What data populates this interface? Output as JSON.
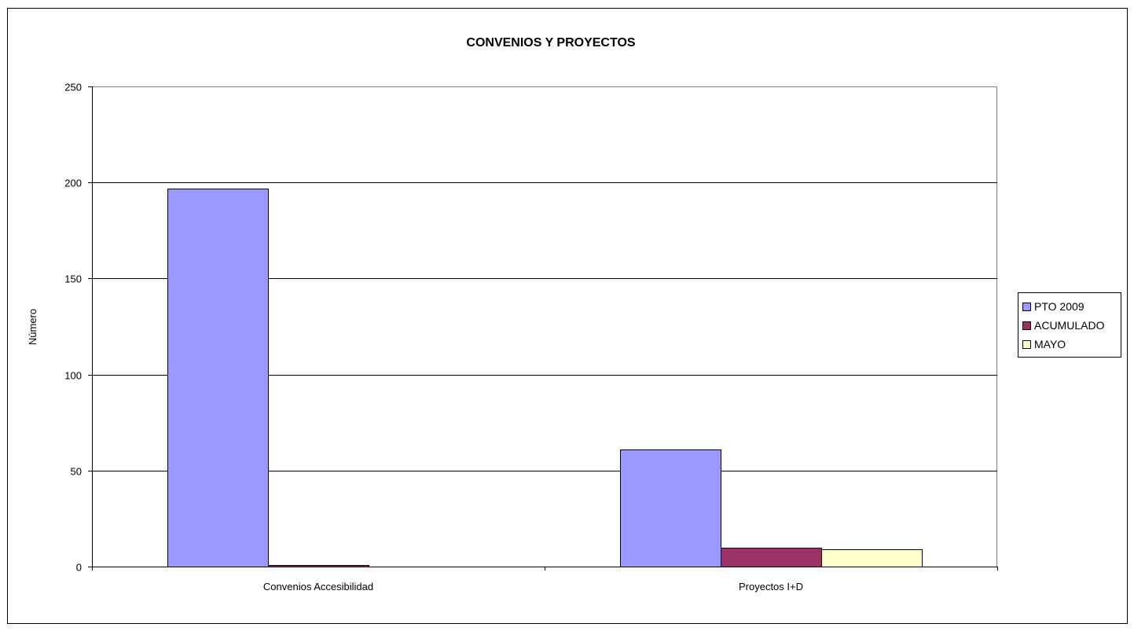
{
  "chart_data": {
    "type": "bar",
    "title": "CONVENIOS Y PROYECTOS",
    "ylabel": "Número",
    "xlabel": "",
    "categories": [
      "Convenios Accesibilidad",
      "Proyectos I+D"
    ],
    "series": [
      {
        "name": "PTO 2009",
        "values": [
          197,
          61
        ],
        "color": "#9999ff"
      },
      {
        "name": "ACUMULADO",
        "values": [
          1,
          10
        ],
        "color": "#993366"
      },
      {
        "name": "MAYO",
        "values": [
          0,
          9
        ],
        "color": "#ffffcc"
      }
    ],
    "ylim": [
      0,
      250
    ],
    "yticks": [
      0,
      50,
      100,
      150,
      200,
      250
    ],
    "grid": true,
    "legend": "right"
  }
}
